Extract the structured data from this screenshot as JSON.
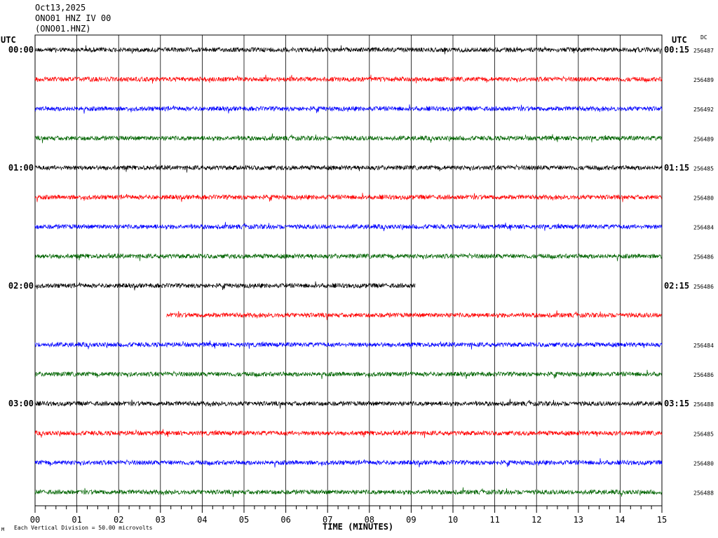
{
  "header": {
    "date": "Oct13,2025",
    "station": "ONO01 HNZ IV 00",
    "channel_code": "(ONO01.HNZ)"
  },
  "utc_left": "UTC",
  "utc_right": "UTC",
  "dc_label": "DC",
  "footer": {
    "mark": "M",
    "vertical_division": "Each Vertical Division =   50.00 microvolts"
  },
  "chart_data": {
    "type": "line",
    "title": "",
    "xlabel": "TIME (MINUTES)",
    "xlim": [
      0,
      15
    ],
    "x_tick_labels": [
      "00",
      "01",
      "02",
      "03",
      "04",
      "05",
      "06",
      "07",
      "08",
      "09",
      "10",
      "11",
      "12",
      "13",
      "14",
      "15"
    ],
    "trace_colors": [
      "#000000",
      "#ff0000",
      "#0000ff",
      "#006400"
    ],
    "traces": [
      {
        "left_time": "00:00",
        "right_time": "00:15",
        "dc": "256487",
        "color": "#000000",
        "start": 0,
        "end": 15
      },
      {
        "left_time": "",
        "right_time": "",
        "dc": "256489",
        "color": "#ff0000",
        "start": 0,
        "end": 15
      },
      {
        "left_time": "",
        "right_time": "",
        "dc": "256492",
        "color": "#0000ff",
        "start": 0,
        "end": 15
      },
      {
        "left_time": "",
        "right_time": "",
        "dc": "256489",
        "color": "#006400",
        "start": 0,
        "end": 15
      },
      {
        "left_time": "01:00",
        "right_time": "01:15",
        "dc": "256485",
        "color": "#000000",
        "start": 0,
        "end": 15
      },
      {
        "left_time": "",
        "right_time": "",
        "dc": "256480",
        "color": "#ff0000",
        "start": 0,
        "end": 15
      },
      {
        "left_time": "",
        "right_time": "",
        "dc": "256484",
        "color": "#0000ff",
        "start": 0,
        "end": 15
      },
      {
        "left_time": "",
        "right_time": "",
        "dc": "256486",
        "color": "#006400",
        "start": 0,
        "end": 15
      },
      {
        "left_time": "02:00",
        "right_time": "02:15",
        "dc": "256486",
        "color": "#000000",
        "start": 0,
        "end": 9.1
      },
      {
        "left_time": "",
        "right_time": "",
        "dc": "",
        "color": "#ff0000",
        "start": 3.15,
        "end": 15
      },
      {
        "left_time": "",
        "right_time": "",
        "dc": "256484",
        "color": "#0000ff",
        "start": 0,
        "end": 15
      },
      {
        "left_time": "",
        "right_time": "",
        "dc": "256486",
        "color": "#006400",
        "start": 0,
        "end": 15
      },
      {
        "left_time": "03:00",
        "right_time": "03:15",
        "dc": "256488",
        "color": "#000000",
        "start": 0,
        "end": 15
      },
      {
        "left_time": "",
        "right_time": "",
        "dc": "256485",
        "color": "#ff0000",
        "start": 0,
        "end": 15
      },
      {
        "left_time": "",
        "right_time": "",
        "dc": "256480",
        "color": "#0000ff",
        "start": 0,
        "end": 15
      },
      {
        "left_time": "",
        "right_time": "",
        "dc": "256488",
        "color": "#006400",
        "start": 0,
        "end": 15
      }
    ]
  }
}
